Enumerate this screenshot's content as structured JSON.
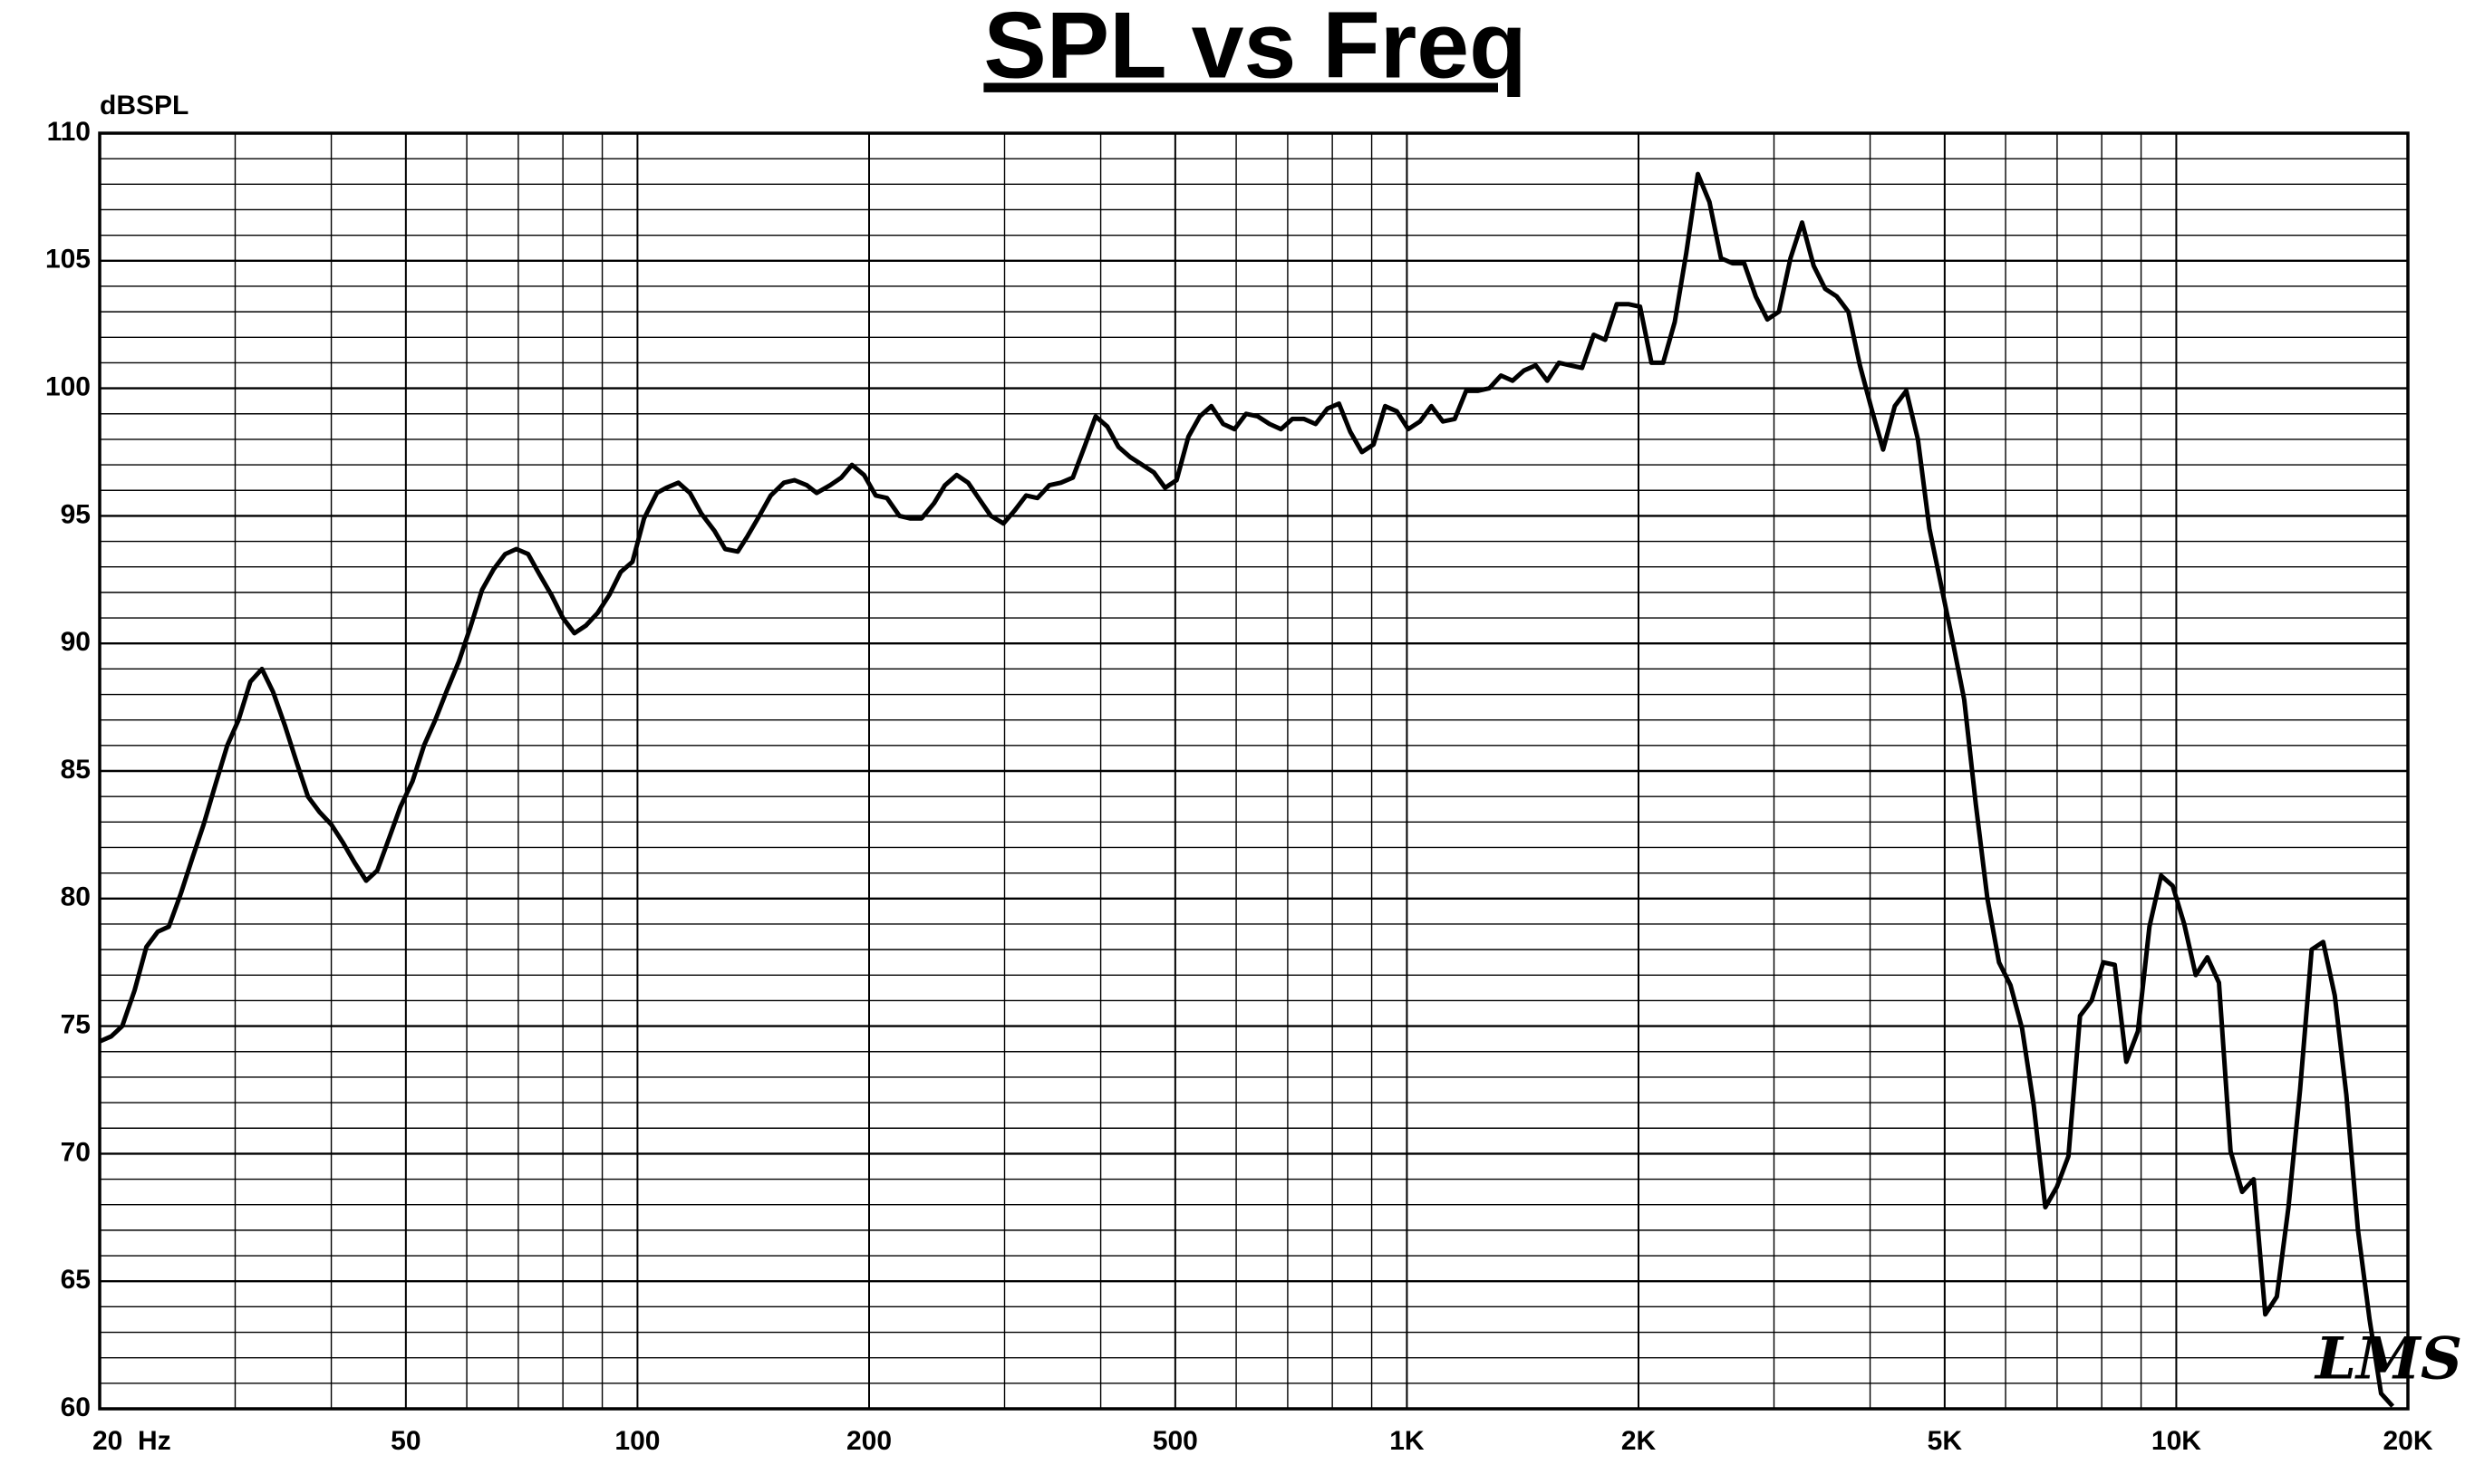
{
  "chart_data": {
    "type": "line",
    "title": "SPL vs Freq",
    "y_label": "dBSPL",
    "watermark": "LMS",
    "log_x": true,
    "grid": true,
    "color": "#000000",
    "xlim": [
      20,
      20000
    ],
    "xticks": [
      {
        "value": 20,
        "label": "20  Hz"
      },
      50,
      100,
      200,
      500,
      {
        "value": 1000,
        "label": "1K"
      },
      {
        "value": 2000,
        "label": "2K"
      },
      {
        "value": 5000,
        "label": "5K"
      },
      {
        "value": 10000,
        "label": "10K"
      },
      {
        "value": 20000,
        "label": "20K"
      }
    ],
    "x_minor_grid": [
      30,
      40,
      60,
      70,
      80,
      90,
      300,
      400,
      600,
      700,
      800,
      900,
      3000,
      4000,
      6000,
      7000,
      8000,
      9000
    ],
    "ylim": [
      60,
      110
    ],
    "yticks": [
      60,
      65,
      70,
      75,
      80,
      85,
      90,
      95,
      100,
      105,
      110
    ],
    "y_minor_step": 1,
    "x": [
      20,
      20.7,
      21.4,
      22.2,
      23.0,
      23.8,
      24.6,
      25.5,
      26.4,
      27.3,
      28.3,
      29.3,
      30.3,
      31.4,
      32.5,
      33.6,
      34.8,
      36.1,
      37.3,
      38.6,
      40,
      41.4,
      42.9,
      44.4,
      45.9,
      47.6,
      49.2,
      51.0,
      52.8,
      54.6,
      56.6,
      58.6,
      60.6,
      62.8,
      65.0,
      67.3,
      69.6,
      72.1,
      74.6,
      77.3,
      80,
      82.8,
      85.7,
      88.8,
      91.9,
      95.1,
      98.5,
      102,
      106,
      109,
      113,
      117,
      121,
      126,
      130,
      135,
      139,
      144,
      149,
      155,
      160,
      166,
      171,
      178,
      184,
      190,
      197,
      204,
      211,
      219,
      226,
      234,
      243,
      251,
      260,
      269,
      279,
      288,
      299,
      309,
      320,
      331,
      343,
      355,
      368,
      381,
      394,
      408,
      422,
      437,
      453,
      469,
      485,
      502,
      520,
      538,
      557,
      577,
      597,
      618,
      640,
      663,
      686,
      710,
      735,
      761,
      788,
      816,
      844,
      874,
      905,
      937,
      970,
      1004,
      1040,
      1076,
      1114,
      1154,
      1194,
      1236,
      1280,
      1325,
      1372,
      1420,
      1470,
      1522,
      1576,
      1631,
      1689,
      1749,
      1810,
      1874,
      1940,
      2009,
      2079,
      2153,
      2229,
      2307,
      2389,
      2473,
      2560,
      2650,
      2744,
      2841,
      2941,
      3044,
      3152,
      3263,
      3378,
      3497,
      3620,
      3748,
      3880,
      4017,
      4159,
      4306,
      4457,
      4615,
      4777,
      4946,
      5120,
      5301,
      5488,
      5682,
      5882,
      6089,
      6304,
      6527,
      6757,
      6995,
      7241,
      7497,
      7761,
      8035,
      8318,
      8611,
      8915,
      9229,
      9555,
      9892,
      10240,
      10601,
      10975,
      11362,
      11763,
      12178,
      12607,
      13052,
      13512,
      13989,
      14482,
      14993,
      15522,
      16069,
      16636,
      17223,
      17830,
      18459,
      19110
    ],
    "values": [
      74.4,
      74.6,
      75.0,
      76.4,
      78.1,
      78.7,
      78.9,
      80.2,
      81.6,
      82.9,
      84.5,
      86.0,
      87.0,
      88.5,
      89.0,
      88.1,
      86.8,
      85.3,
      84.0,
      83.4,
      82.9,
      82.2,
      81.4,
      80.7,
      81.1,
      82.4,
      83.6,
      84.6,
      86.0,
      87.0,
      88.2,
      89.3,
      90.6,
      92.1,
      92.9,
      93.5,
      93.7,
      93.5,
      92.7,
      91.9,
      91.0,
      90.4,
      90.7,
      91.2,
      91.9,
      92.8,
      93.2,
      94.9,
      95.9,
      96.1,
      96.3,
      95.9,
      95.1,
      94.4,
      93.7,
      93.6,
      94.2,
      95.0,
      95.8,
      96.3,
      96.4,
      96.2,
      95.9,
      96.2,
      96.5,
      97.0,
      96.6,
      95.8,
      95.7,
      95.0,
      94.9,
      94.9,
      95.5,
      96.2,
      96.6,
      96.3,
      95.6,
      95.0,
      94.7,
      95.2,
      95.8,
      95.7,
      96.2,
      96.3,
      96.5,
      97.7,
      98.9,
      98.5,
      97.7,
      97.3,
      97.0,
      96.7,
      96.1,
      96.4,
      98.1,
      98.9,
      99.3,
      98.6,
      98.4,
      99.0,
      98.9,
      98.6,
      98.4,
      98.8,
      98.8,
      98.6,
      99.2,
      99.4,
      98.3,
      97.5,
      97.8,
      99.3,
      99.1,
      98.4,
      98.7,
      99.3,
      98.7,
      98.8,
      99.9,
      99.9,
      100.0,
      100.5,
      100.3,
      100.7,
      100.9,
      100.3,
      101.0,
      100.9,
      100.8,
      102.1,
      101.9,
      103.3,
      103.3,
      103.2,
      101.0,
      101.0,
      102.6,
      105.3,
      108.4,
      107.3,
      105.1,
      104.9,
      104.9,
      103.6,
      102.7,
      103.0,
      105.1,
      106.5,
      104.8,
      103.9,
      103.6,
      103.0,
      100.9,
      99.2,
      97.6,
      99.3,
      99.9,
      98.0,
      94.5,
      92.3,
      90.1,
      87.8,
      83.7,
      80.0,
      77.5,
      76.6,
      74.9,
      71.9,
      67.9,
      68.7,
      69.9,
      75.4,
      76.0,
      77.5,
      77.4,
      73.6,
      74.8,
      78.9,
      80.9,
      80.5,
      79.0,
      77.0,
      77.7,
      76.7,
      70.1,
      68.5,
      69.0,
      63.7,
      64.4,
      67.9,
      72.5,
      78.0,
      78.3,
      76.2,
      72.3,
      67.0,
      63.5,
      60.6,
      60.1
    ]
  }
}
